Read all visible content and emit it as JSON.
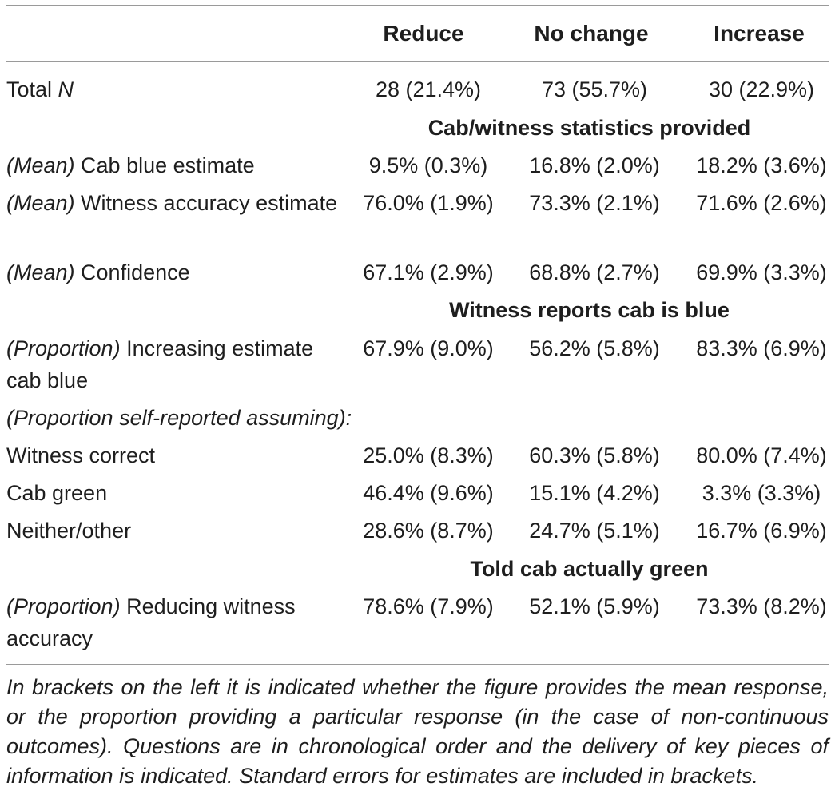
{
  "columns": [
    "Reduce",
    "No change",
    "Increase"
  ],
  "total_n": {
    "label_prefix": "Total ",
    "label_var": "N",
    "values": [
      "28 (21.4%)",
      "73 (55.7%)",
      "30 (22.9%)"
    ]
  },
  "sections": {
    "s1": "Cab/witness statistics provided",
    "s2": "Witness reports cab is blue",
    "s3": "Told cab actually green"
  },
  "rows": {
    "cab_blue": {
      "prefix": "(Mean)",
      "text": " Cab blue estimate",
      "values": [
        "9.5% (0.3%)",
        "16.8% (2.0%)",
        "18.2% (3.6%)"
      ]
    },
    "witness_acc": {
      "prefix": "(Mean)",
      "text": " Witness accuracy estimate",
      "values": [
        "76.0% (1.9%)",
        "73.3% (2.1%)",
        "71.6% (2.6%)"
      ]
    },
    "confidence": {
      "prefix": "(Mean)",
      "text": " Confidence",
      "values": [
        "67.1% (2.9%)",
        "68.8% (2.7%)",
        "69.9% (3.3%)"
      ]
    },
    "increasing": {
      "prefix": "(Proportion)",
      "text": " Increasing estimate cab blue",
      "values": [
        "67.9% (9.0%)",
        "56.2% (5.8%)",
        "83.3% (6.9%)"
      ]
    },
    "self_reported": {
      "prefix": "(Proportion self-reported assuming):"
    },
    "witness_correct": {
      "text": "Witness correct",
      "values": [
        "25.0% (8.3%)",
        "60.3% (5.8%)",
        "80.0% (7.4%)"
      ]
    },
    "cab_green": {
      "text": "Cab green",
      "values": [
        "46.4% (9.6%)",
        "15.1% (4.2%)",
        "3.3% (3.3%)"
      ]
    },
    "neither": {
      "text": "Neither/other",
      "values": [
        "28.6% (8.7%)",
        "24.7% (5.1%)",
        "16.7% (6.9%)"
      ]
    },
    "reducing": {
      "prefix": "(Proportion)",
      "text": " Reducing witness accuracy",
      "values": [
        "78.6% (7.9%)",
        "52.1% (5.9%)",
        "73.3% (8.2%)"
      ]
    }
  },
  "footnote": "In brackets on the left it is indicated whether the figure provides the mean response, or the proportion providing a particular response (in the case of non-continuous outcomes). Questions are in chronological order and the delivery of key pieces of information is indicated. Standard errors for estimates are included in brackets."
}
